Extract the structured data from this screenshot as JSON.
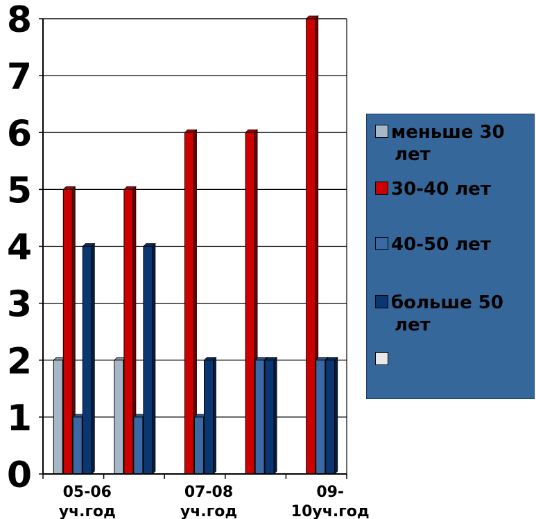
{
  "chart_data": {
    "type": "bar",
    "y_ticks": [
      "0",
      "1",
      "2",
      "3",
      "4",
      "5",
      "6",
      "7",
      "8"
    ],
    "ylim": [
      0,
      8
    ],
    "grid": true,
    "legend_position": "right",
    "categories": [
      {
        "line1": "05-06",
        "line2": "уч.год"
      },
      {
        "line1": "",
        "line2": ""
      },
      {
        "line1": "07-08",
        "line2": "уч.год"
      },
      {
        "line1": "",
        "line2": ""
      },
      {
        "line1": "09-",
        "line2": "10уч.год"
      }
    ],
    "series": [
      {
        "name": "меньше 30 лет",
        "legend_lines": [
          "меньше 30",
          "лет"
        ],
        "color": "#a6b8c8",
        "values": [
          2,
          2,
          0,
          0,
          0
        ]
      },
      {
        "name": "30-40 лет",
        "legend_lines": [
          "30-40 лет"
        ],
        "color": "#cc0000",
        "values": [
          5,
          5,
          6,
          6,
          8
        ]
      },
      {
        "name": "40-50 лет",
        "legend_lines": [
          "40-50 лет"
        ],
        "color": "#3a6aa6",
        "values": [
          1,
          1,
          1,
          2,
          2
        ]
      },
      {
        "name": "больше 50 лет",
        "legend_lines": [
          "больше 50",
          "лет"
        ],
        "color": "#0a3772",
        "values": [
          4,
          4,
          2,
          2,
          2
        ]
      },
      {
        "name": "",
        "legend_lines": [
          ""
        ],
        "color": "#e8e8e8",
        "values": [
          0,
          0,
          0,
          0,
          0
        ]
      }
    ]
  }
}
